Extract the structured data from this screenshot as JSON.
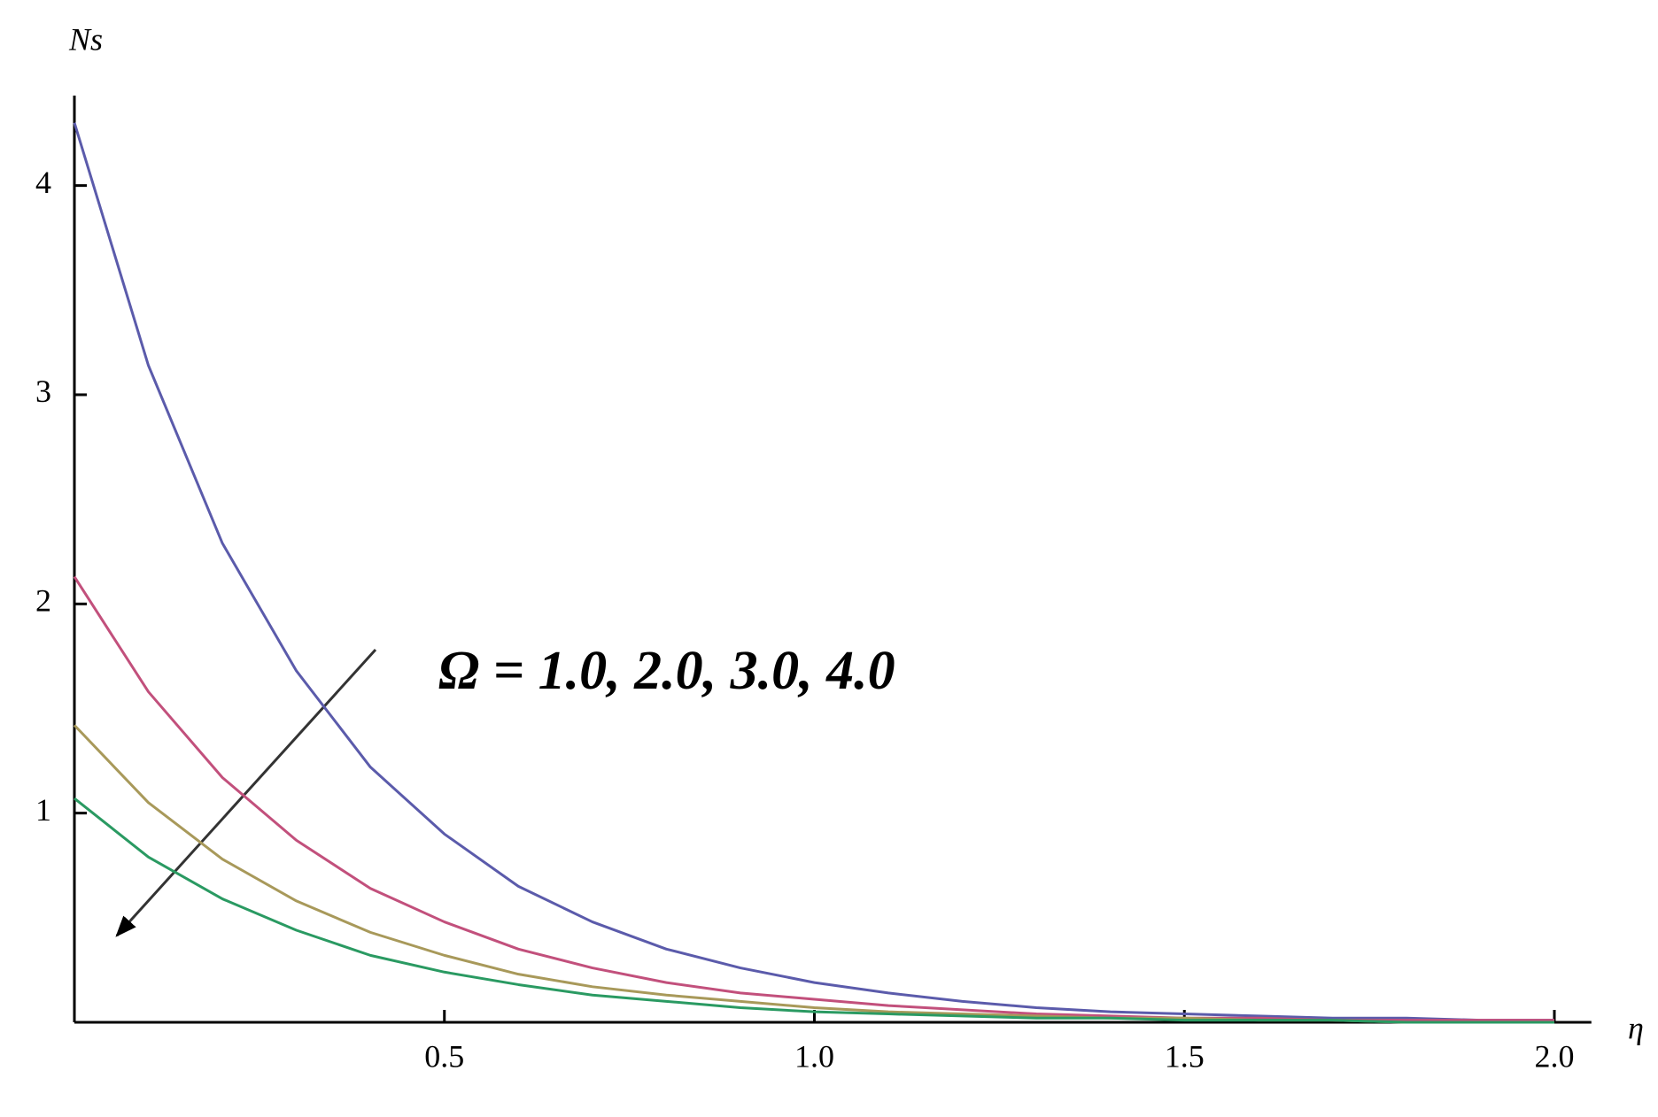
{
  "chart_data": {
    "type": "line",
    "xlabel": "η",
    "ylabel": "Ns",
    "annotation": "Ω = 1.0, 2.0, 3.0, 4.0",
    "x": [
      0,
      0.1,
      0.2,
      0.3,
      0.4,
      0.5,
      0.6,
      0.7,
      0.8,
      0.9,
      1.0,
      1.1,
      1.2,
      1.3,
      1.4,
      1.5,
      1.6,
      1.7,
      1.8,
      1.9,
      2.0
    ],
    "series": [
      {
        "color": "#5b5bab",
        "values": [
          4.3,
          3.14,
          2.29,
          1.68,
          1.22,
          0.9,
          0.65,
          0.48,
          0.35,
          0.26,
          0.19,
          0.14,
          0.1,
          0.07,
          0.05,
          0.04,
          0.03,
          0.02,
          0.02,
          0.01,
          0.01
        ]
      },
      {
        "color": "#c2507c",
        "values": [
          2.13,
          1.58,
          1.17,
          0.87,
          0.64,
          0.48,
          0.35,
          0.26,
          0.19,
          0.14,
          0.11,
          0.08,
          0.06,
          0.04,
          0.03,
          0.02,
          0.02,
          0.01,
          0.01,
          0.01,
          0.01
        ]
      },
      {
        "color": "#a8995a",
        "values": [
          1.42,
          1.05,
          0.78,
          0.58,
          0.43,
          0.32,
          0.23,
          0.17,
          0.13,
          0.1,
          0.07,
          0.05,
          0.04,
          0.03,
          0.02,
          0.02,
          0.01,
          0.01,
          0,
          0,
          0
        ]
      },
      {
        "color": "#2a9a62",
        "values": [
          1.07,
          0.79,
          0.59,
          0.44,
          0.32,
          0.24,
          0.18,
          0.13,
          0.1,
          0.07,
          0.05,
          0.04,
          0.03,
          0.02,
          0.02,
          0.01,
          0.01,
          0.01,
          0,
          0,
          0
        ]
      }
    ],
    "xlim": [
      0,
      2.05
    ],
    "ylim": [
      0,
      4.43
    ],
    "xticks": [
      {
        "value": 0.5,
        "label": "0.5"
      },
      {
        "value": 1,
        "label": "1.0"
      },
      {
        "value": 1.5,
        "label": "1.5"
      },
      {
        "value": 2,
        "label": "2.0"
      }
    ],
    "yticks": [
      1,
      2,
      3,
      4
    ]
  }
}
